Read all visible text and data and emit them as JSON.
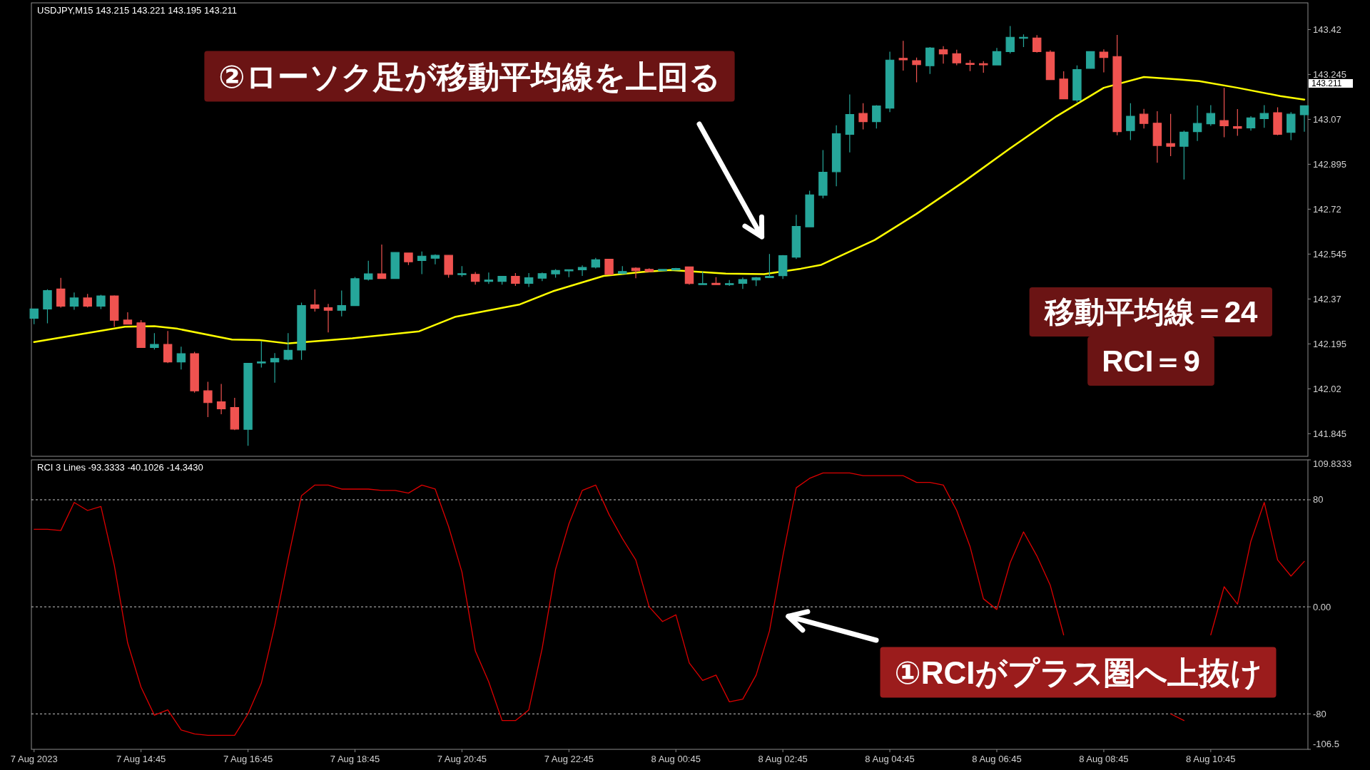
{
  "chart_data": [
    {
      "type": "candlestick",
      "title": "USDJPY,M15 143.215 143.221 143.195 143.211",
      "x": [
        "2023-08-07T12:45",
        "2023-08-07T13:00",
        "2023-08-07T13:15",
        "2023-08-07T13:30",
        "2023-08-07T13:45",
        "2023-08-07T14:00",
        "2023-08-07T14:15",
        "2023-08-07T14:30",
        "2023-08-07T14:45",
        "2023-08-07T15:00",
        "2023-08-07T15:15",
        "2023-08-07T15:30",
        "2023-08-07T15:45",
        "2023-08-07T16:00",
        "2023-08-07T16:15",
        "2023-08-07T16:30",
        "2023-08-07T16:45",
        "2023-08-07T17:00",
        "2023-08-07T17:15",
        "2023-08-07T17:30",
        "2023-08-07T17:45",
        "2023-08-07T18:00",
        "2023-08-07T18:15",
        "2023-08-07T18:30",
        "2023-08-07T18:45",
        "2023-08-07T19:00",
        "2023-08-07T19:15",
        "2023-08-07T19:30",
        "2023-08-07T19:45",
        "2023-08-07T20:00",
        "2023-08-07T20:15",
        "2023-08-07T20:30",
        "2023-08-07T20:45",
        "2023-08-07T21:00",
        "2023-08-07T21:15",
        "2023-08-07T21:30",
        "2023-08-07T21:45",
        "2023-08-07T22:00",
        "2023-08-07T22:15",
        "2023-08-07T22:30",
        "2023-08-07T22:45",
        "2023-08-07T23:00",
        "2023-08-07T23:15",
        "2023-08-07T23:30",
        "2023-08-07T23:45",
        "2023-08-08T00:00",
        "2023-08-08T00:15",
        "2023-08-08T00:30",
        "2023-08-08T00:45",
        "2023-08-08T01:00",
        "2023-08-08T01:15",
        "2023-08-08T01:30",
        "2023-08-08T01:45",
        "2023-08-08T02:00",
        "2023-08-08T02:15",
        "2023-08-08T02:30",
        "2023-08-08T02:45",
        "2023-08-08T03:00",
        "2023-08-08T03:15",
        "2023-08-08T03:30",
        "2023-08-08T03:45",
        "2023-08-08T04:00",
        "2023-08-08T04:15",
        "2023-08-08T04:30",
        "2023-08-08T04:45",
        "2023-08-08T05:00",
        "2023-08-08T05:15",
        "2023-08-08T05:30",
        "2023-08-08T05:45",
        "2023-08-08T06:00",
        "2023-08-08T06:15",
        "2023-08-08T06:30",
        "2023-08-08T06:45",
        "2023-08-08T07:00",
        "2023-08-08T07:15",
        "2023-08-08T07:30",
        "2023-08-08T07:45",
        "2023-08-08T08:00",
        "2023-08-08T08:15",
        "2023-08-08T08:30",
        "2023-08-08T08:45",
        "2023-08-08T09:00",
        "2023-08-08T09:15",
        "2023-08-08T09:30",
        "2023-08-08T09:45",
        "2023-08-08T10:00",
        "2023-08-08T10:15",
        "2023-08-08T10:30",
        "2023-08-08T10:45",
        "2023-08-08T11:00",
        "2023-08-08T11:15",
        "2023-08-08T11:30",
        "2023-08-08T11:45",
        "2023-08-08T12:00",
        "2023-08-08T12:15",
        "2023-08-08T12:30"
      ],
      "ohlc": [
        [
          142.295,
          142.331,
          142.272,
          142.331
        ],
        [
          142.331,
          142.408,
          142.275,
          142.403
        ],
        [
          142.409,
          142.452,
          142.336,
          142.342
        ],
        [
          142.342,
          142.395,
          142.328,
          142.374
        ],
        [
          142.374,
          142.39,
          142.337,
          142.342
        ],
        [
          142.342,
          142.386,
          142.331,
          142.382
        ],
        [
          142.382,
          142.384,
          142.262,
          142.287
        ],
        [
          142.288,
          142.318,
          142.272,
          142.272
        ],
        [
          142.277,
          142.288,
          142.181,
          142.181
        ],
        [
          142.181,
          142.237,
          142.173,
          142.193
        ],
        [
          142.193,
          142.245,
          142.12,
          142.125
        ],
        [
          142.125,
          142.184,
          142.095,
          142.157
        ],
        [
          142.157,
          142.164,
          142.005,
          142.012
        ],
        [
          142.012,
          142.047,
          141.91,
          141.966
        ],
        [
          141.969,
          142.039,
          141.921,
          141.942
        ],
        [
          141.947,
          141.985,
          141.859,
          141.863
        ],
        [
          141.862,
          142.119,
          141.798,
          142.119
        ],
        [
          142.121,
          142.204,
          142.103,
          142.125
        ],
        [
          142.125,
          142.159,
          142.044,
          142.138
        ],
        [
          142.135,
          142.237,
          142.131,
          142.17
        ],
        [
          142.171,
          142.356,
          142.133,
          142.344
        ],
        [
          142.347,
          142.407,
          142.321,
          142.334
        ],
        [
          142.336,
          142.351,
          142.24,
          142.326
        ],
        [
          142.326,
          142.403,
          142.302,
          142.344
        ],
        [
          142.344,
          142.456,
          142.344,
          142.449
        ],
        [
          142.447,
          142.519,
          142.442,
          142.468
        ],
        [
          142.468,
          142.582,
          142.45,
          142.45
        ],
        [
          142.45,
          142.551,
          142.45,
          142.551
        ],
        [
          142.549,
          142.551,
          142.502,
          142.515
        ],
        [
          142.52,
          142.555,
          142.467,
          142.537
        ],
        [
          142.529,
          142.544,
          142.505,
          142.54
        ],
        [
          142.54,
          142.54,
          142.453,
          142.466
        ],
        [
          142.466,
          142.498,
          142.457,
          142.469
        ],
        [
          142.466,
          142.475,
          142.426,
          142.439
        ],
        [
          142.439,
          142.473,
          142.429,
          142.444
        ],
        [
          142.439,
          142.458,
          142.426,
          142.458
        ],
        [
          142.458,
          142.471,
          142.421,
          142.431
        ],
        [
          142.431,
          142.471,
          142.417,
          142.453
        ],
        [
          142.451,
          142.473,
          142.44,
          142.469
        ],
        [
          142.468,
          142.486,
          142.453,
          142.481
        ],
        [
          142.48,
          142.484,
          142.455,
          142.484
        ],
        [
          142.484,
          142.501,
          142.46,
          142.493
        ],
        [
          142.494,
          142.53,
          142.489,
          142.523
        ],
        [
          142.525,
          142.525,
          142.466,
          142.466
        ],
        [
          142.469,
          142.498,
          142.467,
          142.477
        ],
        [
          142.49,
          142.493,
          142.451,
          142.48
        ],
        [
          142.485,
          142.49,
          142.474,
          142.477
        ],
        [
          142.48,
          142.487,
          142.48,
          142.485
        ],
        [
          142.483,
          142.491,
          142.483,
          142.489
        ],
        [
          142.495,
          142.495,
          142.426,
          142.43
        ],
        [
          142.427,
          142.477,
          142.426,
          142.43
        ],
        [
          142.431,
          142.455,
          142.426,
          142.426
        ],
        [
          142.427,
          142.444,
          142.421,
          142.43
        ],
        [
          142.431,
          142.454,
          142.409,
          142.446
        ],
        [
          142.444,
          142.456,
          142.42,
          142.453
        ],
        [
          142.453,
          142.545,
          142.453,
          142.458
        ],
        [
          142.461,
          142.541,
          142.448,
          142.539
        ],
        [
          142.533,
          142.698,
          142.526,
          142.653
        ],
        [
          142.651,
          142.792,
          142.651,
          142.776
        ],
        [
          142.774,
          142.95,
          142.762,
          142.864
        ],
        [
          142.866,
          143.047,
          142.809,
          143.014
        ],
        [
          143.012,
          143.167,
          142.941,
          143.089
        ],
        [
          143.093,
          143.133,
          143.031,
          143.061
        ],
        [
          143.061,
          143.125,
          143.034,
          143.122
        ],
        [
          143.114,
          143.334,
          143.098,
          143.301
        ],
        [
          143.308,
          143.376,
          143.26,
          143.302
        ],
        [
          143.299,
          143.311,
          143.214,
          143.283
        ],
        [
          143.279,
          143.352,
          143.247,
          143.348
        ],
        [
          143.341,
          143.355,
          143.287,
          143.325
        ],
        [
          143.326,
          143.341,
          143.281,
          143.29
        ],
        [
          143.288,
          143.301,
          143.258,
          143.286
        ],
        [
          143.287,
          143.297,
          143.252,
          143.284
        ],
        [
          143.282,
          143.348,
          143.282,
          143.334
        ],
        [
          143.334,
          143.434,
          143.327,
          143.39
        ],
        [
          143.387,
          143.401,
          143.352,
          143.39
        ],
        [
          143.387,
          143.398,
          143.33,
          143.334
        ],
        [
          143.332,
          143.339,
          143.223,
          143.225
        ],
        [
          143.227,
          143.257,
          143.149,
          143.15
        ],
        [
          143.145,
          143.28,
          143.137,
          143.264
        ],
        [
          143.269,
          143.336,
          143.269,
          143.334
        ],
        [
          143.332,
          143.343,
          143.253,
          143.311
        ],
        [
          143.315,
          143.399,
          143.008,
          143.022
        ],
        [
          143.026,
          143.133,
          142.989,
          143.082
        ],
        [
          143.09,
          143.111,
          143.034,
          143.054
        ],
        [
          143.055,
          143.102,
          142.901,
          142.968
        ],
        [
          142.976,
          143.091,
          142.927,
          142.965
        ],
        [
          142.965,
          143.026,
          142.836,
          143.02
        ],
        [
          143.022,
          143.124,
          142.986,
          143.054
        ],
        [
          143.053,
          143.125,
          143.045,
          143.093
        ],
        [
          143.065,
          143.193,
          143.0,
          143.045
        ],
        [
          143.042,
          143.11,
          143.006,
          143.035
        ],
        [
          143.037,
          143.082,
          143.026,
          143.076
        ],
        [
          143.073,
          143.125,
          143.037,
          143.093
        ],
        [
          143.096,
          143.117,
          143.008,
          143.012
        ],
        [
          143.019,
          143.098,
          142.989,
          143.09
        ],
        [
          143.088,
          143.123,
          143.022,
          143.123
        ]
      ],
      "colors": [
        "#26a69a",
        "#26a69a",
        "#ef5350",
        "#26a69a",
        "#ef5350",
        "#26a69a",
        "#ef5350",
        "#ef5350",
        "#ef5350",
        "#26a69a",
        "#ef5350",
        "#26a69a",
        "#ef5350",
        "#ef5350",
        "#ef5350",
        "#ef5350",
        "#26a69a",
        "#26a69a",
        "#26a69a",
        "#26a69a",
        "#26a69a",
        "#ef5350",
        "#ef5350",
        "#26a69a",
        "#26a69a",
        "#26a69a",
        "#ef5350",
        "#26a69a",
        "#ef5350",
        "#26a69a",
        "#26a69a",
        "#ef5350",
        "#26a69a",
        "#ef5350",
        "#26a69a",
        "#26a69a",
        "#ef5350",
        "#26a69a",
        "#26a69a",
        "#26a69a",
        "#26a69a",
        "#26a69a",
        "#26a69a",
        "#ef5350",
        "#26a69a",
        "#ef5350",
        "#ef5350",
        "#26a69a",
        "#26a69a",
        "#ef5350",
        "#26a69a",
        "#ef5350",
        "#26a69a",
        "#26a69a",
        "#26a69a",
        "#26a69a",
        "#26a69a",
        "#26a69a",
        "#26a69a",
        "#26a69a",
        "#26a69a",
        "#26a69a",
        "#ef5350",
        "#26a69a",
        "#26a69a",
        "#ef5350",
        "#ef5350",
        "#26a69a",
        "#ef5350",
        "#ef5350",
        "#ef5350",
        "#ef5350",
        "#26a69a",
        "#26a69a",
        "#26a69a",
        "#ef5350",
        "#ef5350",
        "#ef5350",
        "#26a69a",
        "#26a69a",
        "#ef5350",
        "#ef5350",
        "#26a69a",
        "#ef5350",
        "#ef5350",
        "#ef5350",
        "#26a69a",
        "#26a69a",
        "#26a69a",
        "#ef5350",
        "#ef5350",
        "#26a69a",
        "#26a69a",
        "#ef5350",
        "#26a69a",
        "#26a69a"
      ],
      "series": [
        {
          "type": "line",
          "color": "#ffff00",
          "x": [
            "2023-08-07T12:45",
            "2023-08-07T14:27",
            "2023-08-07T15:00",
            "2023-08-07T15:26",
            "2023-08-07T16:27",
            "2023-08-07T16:58",
            "2023-08-07T17:29",
            "2023-08-07T18:42",
            "2023-08-07T19:57",
            "2023-08-07T20:37",
            "2023-08-07T21:50",
            "2023-08-07T22:27",
            "2023-08-07T23:24",
            "2023-08-08T00:07",
            "2023-08-08T00:39",
            "2023-08-08T01:41",
            "2023-08-08T02:24",
            "2023-08-08T03:05",
            "2023-08-08T03:28",
            "2023-08-08T04:28",
            "2023-08-08T05:15",
            "2023-08-08T06:08",
            "2023-08-08T07:00",
            "2023-08-08T07:52",
            "2023-08-08T08:45",
            "2023-08-08T09:30",
            "2023-08-08T10:10",
            "2023-08-08T10:32",
            "2023-08-08T11:15",
            "2023-08-08T12:03",
            "2023-08-08T12:30"
          ],
          "values": [
            142.202,
            142.262,
            142.264,
            142.254,
            142.212,
            142.21,
            142.197,
            142.217,
            142.244,
            142.3,
            142.349,
            142.4,
            142.46,
            142.475,
            142.483,
            142.469,
            142.467,
            142.488,
            142.503,
            142.6,
            142.702,
            142.827,
            142.957,
            143.082,
            143.193,
            143.235,
            143.225,
            143.219,
            143.193,
            143.161,
            143.147
          ]
        }
      ],
      "xlim": [
        "2023-08-07T12:42",
        "2023-08-08T12:34"
      ],
      "ylim": [
        141.757,
        143.524
      ],
      "yticks": [
        141.845,
        142.02,
        142.195,
        142.37,
        142.545,
        142.72,
        142.895,
        143.07,
        143.245,
        143.42
      ],
      "tick_labels": "y",
      "annotations": [
        "②ローソク足が移動平均線を上回る",
        "移動平均線＝24",
        "RCI＝9",
        "143.211"
      ]
    },
    {
      "type": "line",
      "title": "RCI 3 Lines -93.3333 -40.1026 -14.3430",
      "series": [
        {
          "color": "#dd0000",
          "x": [
            "2023-08-07T12:45",
            "2023-08-07T13:00",
            "2023-08-07T13:15",
            "2023-08-07T13:30",
            "2023-08-07T13:45",
            "2023-08-07T14:00",
            "2023-08-07T14:15",
            "2023-08-07T14:30",
            "2023-08-07T14:45",
            "2023-08-07T15:00",
            "2023-08-07T15:15",
            "2023-08-07T15:30",
            "2023-08-07T15:45",
            "2023-08-07T16:00",
            "2023-08-07T16:15",
            "2023-08-07T16:30",
            "2023-08-07T16:45",
            "2023-08-07T17:00",
            "2023-08-07T17:15",
            "2023-08-07T17:30",
            "2023-08-07T17:45",
            "2023-08-07T18:00",
            "2023-08-07T18:15",
            "2023-08-07T18:30",
            "2023-08-07T18:45",
            "2023-08-07T19:00",
            "2023-08-07T19:15",
            "2023-08-07T19:30",
            "2023-08-07T19:45",
            "2023-08-07T20:00",
            "2023-08-07T20:15",
            "2023-08-07T20:30",
            "2023-08-07T20:45",
            "2023-08-07T21:00",
            "2023-08-07T21:15",
            "2023-08-07T21:30",
            "2023-08-07T21:45",
            "2023-08-07T22:00",
            "2023-08-07T22:15",
            "2023-08-07T22:30",
            "2023-08-07T22:45",
            "2023-08-07T23:00",
            "2023-08-07T23:15",
            "2023-08-07T23:30",
            "2023-08-07T23:45",
            "2023-08-08T00:00",
            "2023-08-08T00:15",
            "2023-08-08T00:30",
            "2023-08-08T00:45",
            "2023-08-08T01:00",
            "2023-08-08T01:15",
            "2023-08-08T01:30",
            "2023-08-08T01:45",
            "2023-08-08T02:00",
            "2023-08-08T02:15",
            "2023-08-08T02:30",
            "2023-08-08T02:45",
            "2023-08-08T03:00",
            "2023-08-08T03:15",
            "2023-08-08T03:30",
            "2023-08-08T03:45",
            "2023-08-08T04:00",
            "2023-08-08T04:15",
            "2023-08-08T04:30",
            "2023-08-08T04:45",
            "2023-08-08T05:00",
            "2023-08-08T05:15",
            "2023-08-08T05:30",
            "2023-08-08T05:45",
            "2023-08-08T06:00",
            "2023-08-08T06:15",
            "2023-08-08T06:30",
            "2023-08-08T06:45",
            "2023-08-08T07:00",
            "2023-08-08T07:15",
            "2023-08-08T07:30",
            "2023-08-08T07:45",
            "2023-08-08T08:00"
          ],
          "values": [
            58,
            58,
            57,
            78,
            72,
            75,
            31,
            -27,
            -60,
            -81,
            -77,
            -92,
            -95,
            -96,
            -96,
            -96,
            -80,
            -57,
            -14,
            36,
            83,
            91,
            91,
            88,
            88,
            88,
            87,
            87,
            85,
            91,
            88,
            60,
            26,
            -33,
            -56,
            -85,
            -85,
            -77,
            -31,
            28,
            62,
            87,
            91,
            69,
            51,
            35,
            0,
            -11,
            -6,
            -42,
            -55,
            -51,
            -71,
            -69,
            -51,
            -18,
            38,
            89,
            96,
            100,
            100,
            100,
            98,
            98,
            98,
            98,
            93,
            93,
            91,
            72,
            45,
            6,
            -2,
            33,
            56,
            38,
            16,
            -21
          ]
        },
        {
          "color": "#dd0000",
          "x": [
            "2023-08-08T10:00",
            "2023-08-08T10:15"
          ],
          "values": [
            -80,
            -85
          ]
        },
        {
          "color": "#dd0000",
          "x": [
            "2023-08-08T10:45",
            "2023-08-08T11:00",
            "2023-08-08T11:15",
            "2023-08-08T11:30",
            "2023-08-08T11:45",
            "2023-08-08T12:00",
            "2023-08-08T12:15",
            "2023-08-08T12:30"
          ],
          "values": [
            -21,
            15,
            2,
            49,
            78,
            35,
            23,
            34
          ]
        }
      ],
      "xlim": [
        "2023-08-07T12:42",
        "2023-08-08T12:34"
      ],
      "xticks": [
        {
          "value": "2023-08-07T12:45",
          "label": "7 Aug 2023"
        },
        {
          "value": "2023-08-07T14:45",
          "label": "7 Aug 14:45"
        },
        {
          "value": "2023-08-07T16:45",
          "label": "7 Aug 16:45"
        },
        {
          "value": "2023-08-07T18:45",
          "label": "7 Aug 18:45"
        },
        {
          "value": "2023-08-07T20:45",
          "label": "7 Aug 20:45"
        },
        {
          "value": "2023-08-07T22:45",
          "label": "7 Aug 22:45"
        },
        {
          "value": "2023-08-08T00:45",
          "label": "8 Aug 00:45"
        },
        {
          "value": "2023-08-08T02:45",
          "label": "8 Aug 02:45"
        },
        {
          "value": "2023-08-08T04:45",
          "label": "8 Aug 04:45"
        },
        {
          "value": "2023-08-08T06:45",
          "label": "8 Aug 06:45"
        },
        {
          "value": "2023-08-08T08:45",
          "label": "8 Aug 08:45"
        },
        {
          "value": "2023-08-08T10:45",
          "label": "8 Aug 10:45"
        }
      ],
      "ylim": [
        -106.5,
        109.8333
      ],
      "yticks": [
        109.8333,
        80,
        {
          "value": 0,
          "label": "0.00"
        },
        -80,
        -106.5
      ],
      "ref_lines": [
        {
          "axis": "y",
          "value": 80,
          "line_style": "dashed",
          "color": "#c8c8c8"
        },
        {
          "axis": "y",
          "value": 0,
          "line_style": "dashed",
          "color": "#c8c8c8"
        },
        {
          "axis": "y",
          "value": -80,
          "line_style": "dashed",
          "color": "#c8c8c8"
        }
      ],
      "annotations": [
        "①RCIがプラス圏へ上抜け"
      ]
    }
  ]
}
